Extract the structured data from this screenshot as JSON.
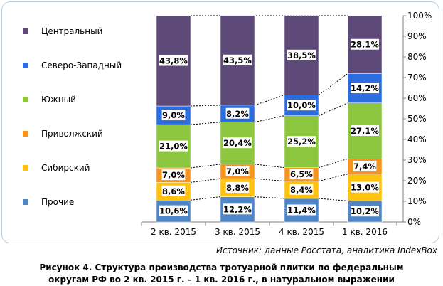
{
  "chart_data": {
    "type": "bar",
    "stacked": true,
    "percent": true,
    "categories": [
      "2 кв. 2015",
      "3 кв. 2015",
      "4 кв. 2015",
      "1 кв. 2016"
    ],
    "series": [
      {
        "name": "Прочие",
        "color": "#4f86c6",
        "values": [
          10.6,
          12.2,
          11.4,
          10.2
        ],
        "labels": [
          "10,6%",
          "12,2%",
          "11,4%",
          "10,2%"
        ]
      },
      {
        "name": "Сибирский",
        "color": "#ffc20e",
        "values": [
          8.6,
          8.8,
          8.4,
          13.0
        ],
        "labels": [
          "8,6%",
          "8,8%",
          "8,4%",
          "13,0%"
        ]
      },
      {
        "name": "Приволжский",
        "color": "#f7941d",
        "values": [
          7.0,
          7.0,
          6.5,
          7.4
        ],
        "labels": [
          "7,0%",
          "7,0%",
          "6,5%",
          "7,4%"
        ]
      },
      {
        "name": "Южный",
        "color": "#8dc63f",
        "values": [
          21.0,
          20.4,
          25.2,
          27.1
        ],
        "labels": [
          "21,0%",
          "20,4%",
          "25,2%",
          "27,1%"
        ]
      },
      {
        "name": "Северо-Западный",
        "color": "#2b6cde",
        "values": [
          9.0,
          8.2,
          10.0,
          14.2
        ],
        "labels": [
          "9,0%",
          "8,2%",
          "10,0%",
          "14,2%"
        ]
      },
      {
        "name": "Центральный",
        "color": "#5e4a78",
        "values": [
          43.8,
          43.5,
          38.5,
          28.1
        ],
        "labels": [
          "43,8%",
          "43,5%",
          "38,5%",
          "28,1%"
        ]
      }
    ],
    "yticks": [
      "0%",
      "10%",
      "20%",
      "30%",
      "40%",
      "50%",
      "60%",
      "70%",
      "80%",
      "90%",
      "100%"
    ],
    "ylim": [
      0,
      100
    ],
    "legend_position": "left",
    "series_lines": "dotted connectors between bars"
  },
  "source": "Источник: данные Росстата, аналитика IndexBox",
  "caption": {
    "line1": "Рисунок 4. Структура производства тротуарной плитки по федеральным",
    "line2": "округам РФ во 2 кв. 2015 г. – 1 кв. 2016 г., в натуральном выражении"
  }
}
